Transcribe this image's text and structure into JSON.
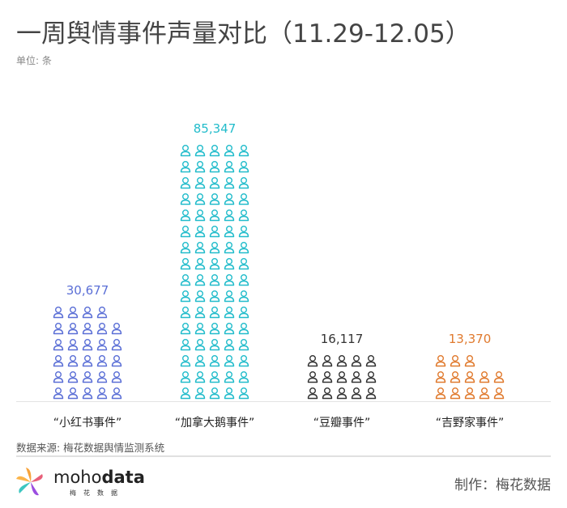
{
  "chart_data": {
    "type": "pictogram",
    "title": "一周舆情事件声量对比（11.29-12.05）",
    "unit_label": "单位: 条",
    "categories": [
      "“小红书事件”",
      "“加拿大鹅事件”",
      "“豆瓣事件”",
      "“吉野家事件”"
    ],
    "values": [
      30677,
      85347,
      16117,
      13370
    ],
    "value_labels": [
      "30,677",
      "85,347",
      "16,117",
      "13,370"
    ],
    "icon_counts": [
      29,
      80,
      15,
      13
    ],
    "colors": [
      "#5b6fd6",
      "#22bccb",
      "#333333",
      "#e07a2e"
    ],
    "icon": "person-icon"
  },
  "footer": {
    "source": "数据来源: 梅花数据舆情监测系统",
    "brand_light": "moho",
    "brand_bold": "data",
    "brand_sub": "梅花数据",
    "maker": "制作：梅花数据"
  }
}
